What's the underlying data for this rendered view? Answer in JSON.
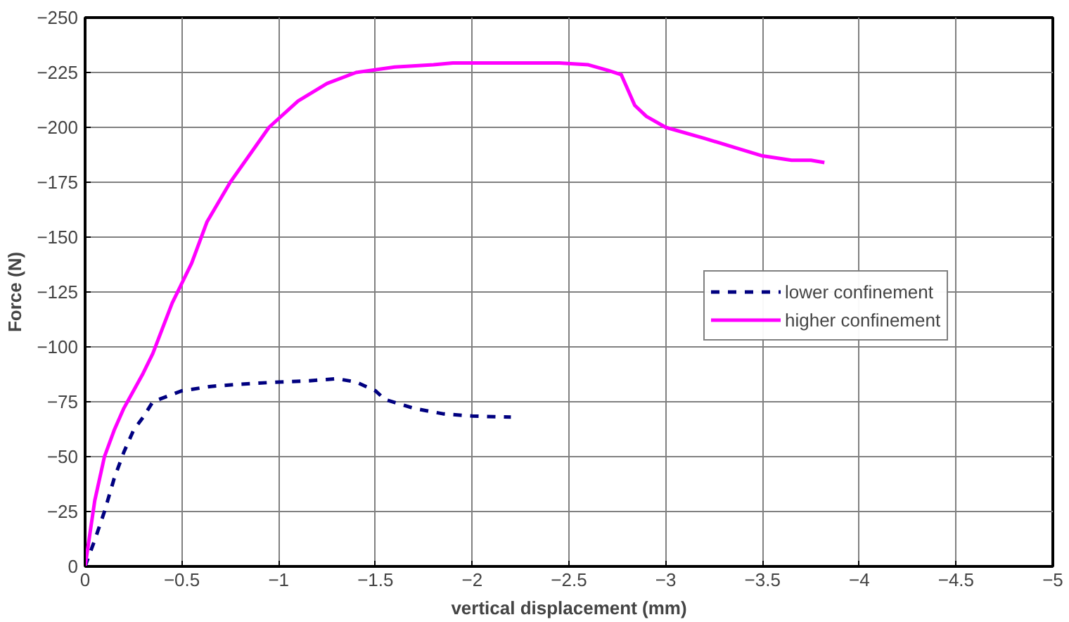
{
  "chart_data": {
    "type": "line",
    "xlabel": "vertical displacement (mm)",
    "ylabel": "Force (N)",
    "xlim": [
      0,
      -5
    ],
    "ylim": [
      0,
      -250
    ],
    "xticks": [
      0,
      -0.5,
      -1,
      -1.5,
      -2,
      -2.5,
      -3,
      -3.5,
      -4,
      -4.5,
      -5
    ],
    "yticks": [
      0,
      -25,
      -50,
      -75,
      -100,
      -125,
      -150,
      -175,
      -200,
      -225,
      -250
    ],
    "grid": true,
    "legend": "right",
    "marker": "none",
    "series": [
      {
        "name": "lower confinement",
        "color": "#000080",
        "line_style": "dashed",
        "x": [
          0,
          -0.05,
          -0.1,
          -0.15,
          -0.2,
          -0.25,
          -0.3,
          -0.35,
          -0.5,
          -0.65,
          -0.8,
          -1.0,
          -1.15,
          -1.3,
          -1.4,
          -1.5,
          -1.55,
          -1.7,
          -1.85,
          -2.0,
          -2.2
        ],
        "values": [
          0,
          -12,
          -25,
          -40,
          -52,
          -62,
          -68,
          -75,
          -80,
          -82,
          -83,
          -84,
          -84.5,
          -85.5,
          -84,
          -80,
          -76,
          -72,
          -69.5,
          -68.5,
          -68
        ]
      },
      {
        "name": "higher confinement",
        "color": "#ff00ff",
        "line_style": "solid",
        "x": [
          0,
          -0.05,
          -0.1,
          -0.15,
          -0.2,
          -0.3,
          -0.35,
          -0.45,
          -0.55,
          -0.63,
          -0.75,
          -0.87,
          -0.95,
          -1.1,
          -1.25,
          -1.4,
          -1.6,
          -1.8,
          -1.9,
          -2.1,
          -2.3,
          -2.45,
          -2.6,
          -2.7,
          -2.77,
          -2.8,
          -2.84,
          -2.9,
          -3.0,
          -3.2,
          -3.35,
          -3.5,
          -3.65,
          -3.75,
          -3.82
        ],
        "values": [
          0,
          -30,
          -50,
          -62,
          -72,
          -88,
          -97,
          -120,
          -138,
          -157,
          -175,
          -190,
          -200,
          -212,
          -220,
          -225,
          -227.5,
          -228.5,
          -229.3,
          -229.3,
          -229.3,
          -229.3,
          -228.5,
          -226,
          -224,
          -218,
          -210,
          -205,
          -200,
          -195,
          -191,
          -187,
          -185,
          -185,
          -184
        ]
      }
    ]
  }
}
